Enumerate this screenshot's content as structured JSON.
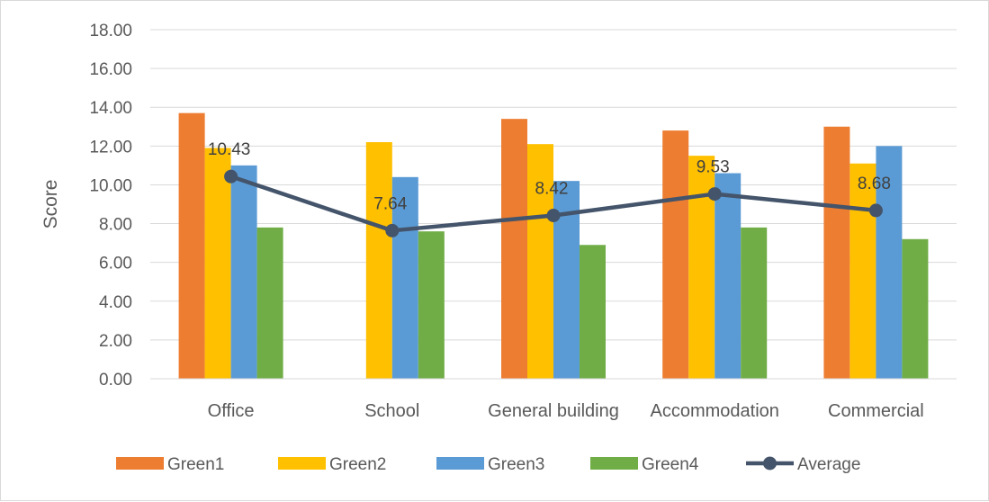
{
  "chart_data": {
    "type": "bar",
    "title": "",
    "xlabel": "",
    "ylabel": "Score",
    "ylim": [
      0,
      18
    ],
    "yticks": [
      "0.00",
      "2.00",
      "4.00",
      "6.00",
      "8.00",
      "10.00",
      "12.00",
      "14.00",
      "16.00",
      "18.00"
    ],
    "grid": true,
    "legend_position": "bottom",
    "categories": [
      "Office",
      "School",
      "General building",
      "Accommodation",
      "Commercial"
    ],
    "series": [
      {
        "name": "Green1",
        "type": "bar",
        "color": "#ED7D31",
        "values": [
          13.7,
          0,
          13.4,
          12.8,
          13.0
        ]
      },
      {
        "name": "Green2",
        "type": "bar",
        "color": "#FFC000",
        "values": [
          11.9,
          12.2,
          12.1,
          11.5,
          11.1
        ]
      },
      {
        "name": "Green3",
        "type": "bar",
        "color": "#5B9BD5",
        "values": [
          11.0,
          10.4,
          10.2,
          10.6,
          12.0
        ]
      },
      {
        "name": "Green4",
        "type": "bar",
        "color": "#70AD47",
        "values": [
          7.8,
          7.6,
          6.9,
          7.8,
          7.2
        ]
      },
      {
        "name": "Average",
        "type": "line",
        "color": "#44546A",
        "values": [
          10.43,
          7.64,
          8.42,
          9.53,
          8.68
        ]
      }
    ],
    "data_labels": [
      "10.43",
      "7.64",
      "8.42",
      "9.53",
      "8.68"
    ]
  }
}
